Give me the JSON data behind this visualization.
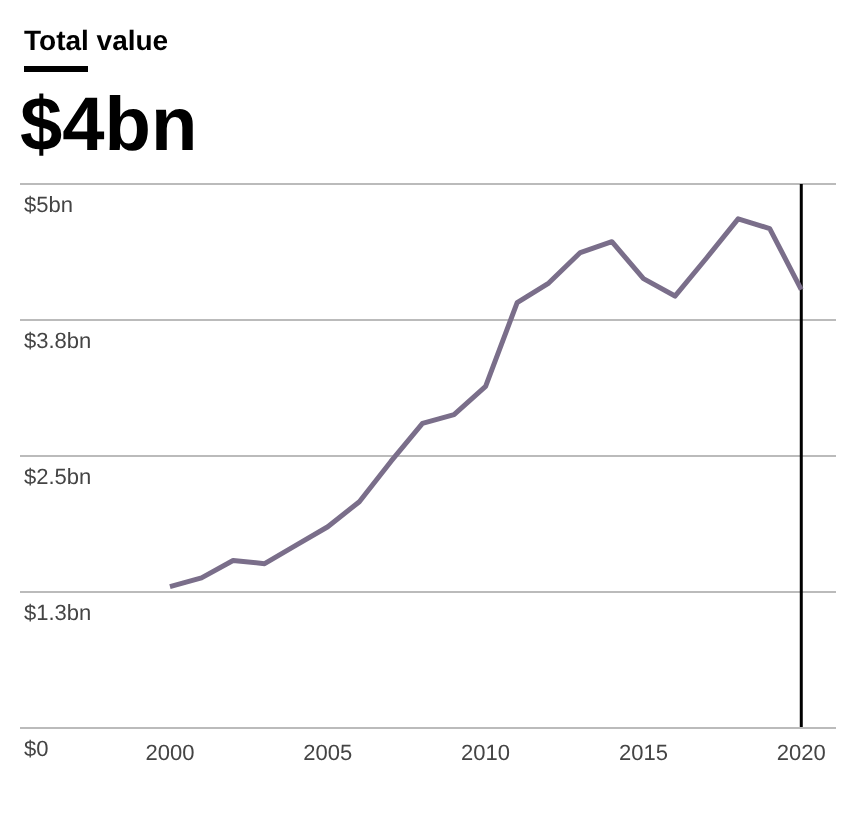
{
  "chart_data": {
    "type": "line",
    "title": "Total value",
    "subtitle": "$4bn",
    "x": [
      2000,
      2001,
      2002,
      2003,
      2004,
      2005,
      2006,
      2007,
      2008,
      2009,
      2010,
      2011,
      2012,
      2013,
      2014,
      2015,
      2016,
      2017,
      2018,
      2019,
      2020
    ],
    "series": [
      {
        "color": "#7a6e8a",
        "values": [
          1.3,
          1.38,
          1.54,
          1.51,
          1.68,
          1.85,
          2.08,
          2.45,
          2.8,
          2.88,
          3.14,
          3.91,
          4.09,
          4.37,
          4.47,
          4.13,
          3.97,
          4.32,
          4.68,
          4.59,
          4.03
        ]
      }
    ],
    "xlim": [
      1995.25,
      2021.1
    ],
    "xticks": [
      2000,
      2005,
      2010,
      2015,
      2020
    ],
    "ylim": [
      0,
      5
    ],
    "yticks": [
      {
        "value": 0,
        "label": "$0"
      },
      {
        "value": 1.25,
        "label": "$1.3bn"
      },
      {
        "value": 2.5,
        "label": "$2.5bn"
      },
      {
        "value": 3.75,
        "label": "$3.8bn"
      },
      {
        "value": 5,
        "label": "$5bn"
      }
    ],
    "grid": "y",
    "marker": "none",
    "line_style": "solid",
    "ref_lines": [
      {
        "axis": "x",
        "value": 2020,
        "color": "#000000"
      }
    ]
  }
}
